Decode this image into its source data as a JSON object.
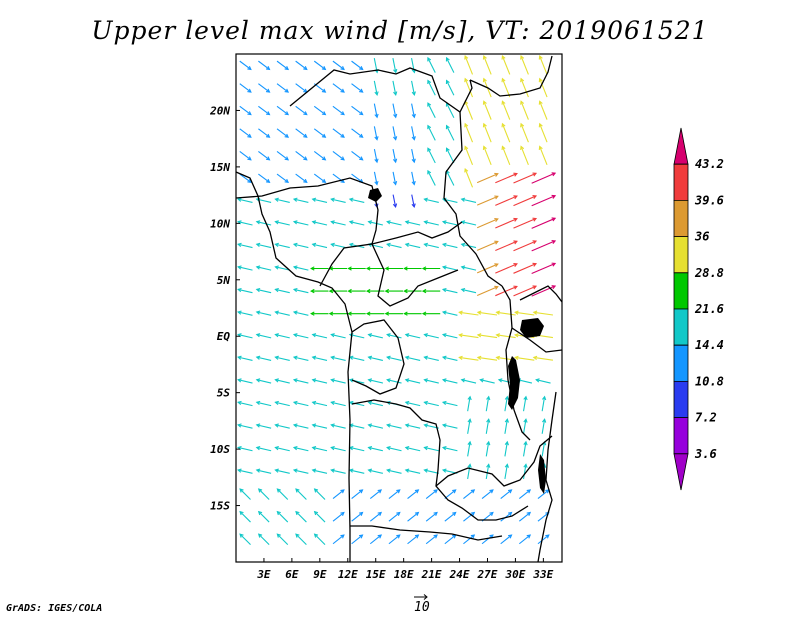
{
  "title": "Upper level max wind [m/s], VT: 2019061521",
  "credit": "GrADS: IGES/COLA",
  "reference_vector": {
    "label": "10"
  },
  "map": {
    "lon_range": [
      0,
      35
    ],
    "lat_range": [
      -20,
      25
    ],
    "x_ticks": [
      "3E",
      "6E",
      "9E",
      "12E",
      "15E",
      "18E",
      "21E",
      "24E",
      "27E",
      "30E",
      "33E"
    ],
    "y_ticks": [
      "20N",
      "15N",
      "10N",
      "5N",
      "EQ",
      "5S",
      "10S",
      "15S"
    ]
  },
  "colorbar": {
    "labels": [
      "43.2",
      "39.6",
      "36",
      "28.8",
      "21.6",
      "14.4",
      "10.8",
      "7.2",
      "3.6"
    ],
    "colors": [
      "#d6006e",
      "#f03c3c",
      "#dc9a32",
      "#e6e032",
      "#00c800",
      "#12c8c8",
      "#1496ff",
      "#2a3cf0",
      "#9600dc",
      "#a000c8"
    ]
  }
}
